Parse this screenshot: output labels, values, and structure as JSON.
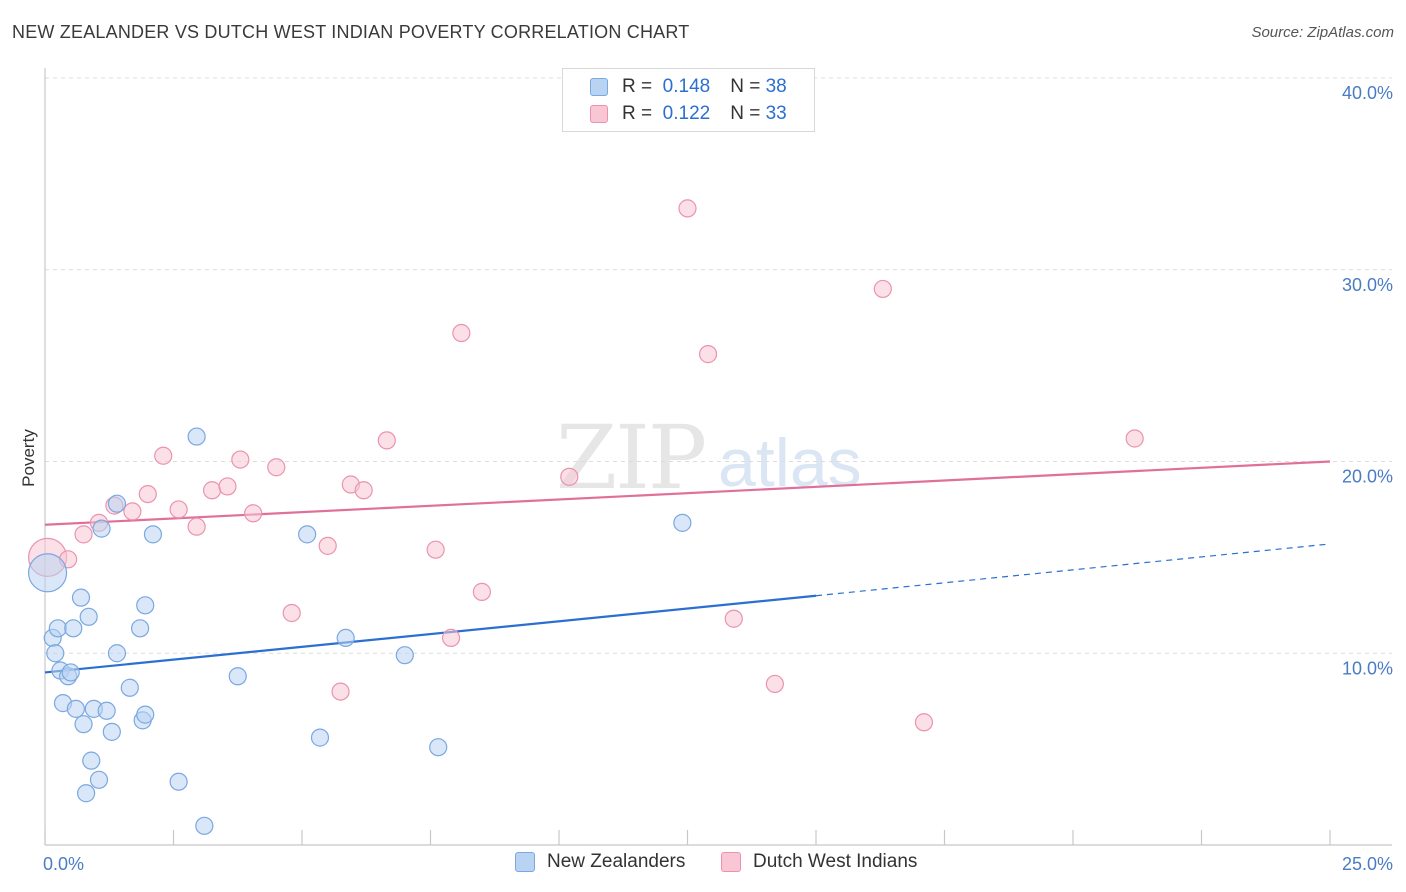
{
  "title": "NEW ZEALANDER VS DUTCH WEST INDIAN POVERTY CORRELATION CHART",
  "source": "Source: ZipAtlas.com",
  "watermark": {
    "zip": "ZIP",
    "atlas": "atlas"
  },
  "colors": {
    "blue_fill": "#b9d3f3",
    "blue_stroke": "#7aa8e0",
    "blue_line": "#2b6fd1",
    "pink_fill": "#f8c6d4",
    "pink_stroke": "#eb93ae",
    "pink_line": "#e0709a",
    "grid": "#dcdcdc",
    "axis_text": "#4a7cc4"
  },
  "legend": {
    "rows": [
      {
        "r_label": "R =",
        "r_value": "0.148",
        "n_label": "N =",
        "n_value": "38",
        "series": "New Zealanders"
      },
      {
        "r_label": "R =",
        "r_value": "0.122",
        "n_label": "N =",
        "n_value": "33",
        "series": "Dutch West Indians"
      }
    ]
  },
  "chart_data": {
    "type": "scatter",
    "title": "NEW ZEALANDER VS DUTCH WEST INDIAN POVERTY CORRELATION CHART",
    "xlabel": "",
    "ylabel": "Poverty",
    "xlim": [
      0,
      25
    ],
    "ylim": [
      0,
      40
    ],
    "x_tick_labels": [
      "0.0%",
      "25.0%"
    ],
    "y_ticks": [
      10,
      20,
      30,
      40
    ],
    "y_tick_labels": [
      "10.0%",
      "20.0%",
      "30.0%",
      "40.0%"
    ],
    "x_minor_ticks": [
      0,
      2.5,
      5,
      7.5,
      10,
      12.5,
      15,
      17.5,
      20,
      22.5,
      25
    ],
    "grid": true,
    "legend_position": "bottom",
    "series": [
      {
        "name": "New Zealanders",
        "color": "#7aa8e0",
        "r": 0.148,
        "n": 38,
        "trend": {
          "x0": 0,
          "y0": 9.0,
          "x1": 15,
          "y1": 13.0,
          "dashed_to_x": 25,
          "dashed_to_y": 15.7
        },
        "points": [
          {
            "x": 0.05,
            "y": 14.2,
            "big": true
          },
          {
            "x": 0.15,
            "y": 10.8
          },
          {
            "x": 0.2,
            "y": 10.0
          },
          {
            "x": 0.25,
            "y": 11.3
          },
          {
            "x": 0.3,
            "y": 9.1
          },
          {
            "x": 0.35,
            "y": 7.4
          },
          {
            "x": 0.45,
            "y": 8.8
          },
          {
            "x": 0.5,
            "y": 9.0
          },
          {
            "x": 0.55,
            "y": 11.3
          },
          {
            "x": 0.6,
            "y": 7.1
          },
          {
            "x": 0.7,
            "y": 12.9
          },
          {
            "x": 0.75,
            "y": 6.3
          },
          {
            "x": 0.8,
            "y": 2.7
          },
          {
            "x": 0.85,
            "y": 11.9
          },
          {
            "x": 0.9,
            "y": 4.4
          },
          {
            "x": 0.95,
            "y": 7.1
          },
          {
            "x": 1.05,
            "y": 3.4
          },
          {
            "x": 1.1,
            "y": 16.5
          },
          {
            "x": 1.2,
            "y": 7.0
          },
          {
            "x": 1.3,
            "y": 5.9
          },
          {
            "x": 1.4,
            "y": 10.0
          },
          {
            "x": 1.4,
            "y": 17.8
          },
          {
            "x": 1.65,
            "y": 8.2
          },
          {
            "x": 1.85,
            "y": 11.3
          },
          {
            "x": 1.9,
            "y": 6.5
          },
          {
            "x": 1.95,
            "y": 6.8
          },
          {
            "x": 1.95,
            "y": 12.5
          },
          {
            "x": 2.1,
            "y": 16.2
          },
          {
            "x": 2.6,
            "y": 3.3
          },
          {
            "x": 2.95,
            "y": 21.3
          },
          {
            "x": 3.1,
            "y": 1.0
          },
          {
            "x": 3.75,
            "y": 8.8
          },
          {
            "x": 5.1,
            "y": 16.2
          },
          {
            "x": 5.35,
            "y": 5.6
          },
          {
            "x": 5.85,
            "y": 10.8
          },
          {
            "x": 7.0,
            "y": 9.9
          },
          {
            "x": 7.65,
            "y": 5.1
          },
          {
            "x": 12.4,
            "y": 16.8
          }
        ]
      },
      {
        "name": "Dutch West Indians",
        "color": "#eb93ae",
        "r": 0.122,
        "n": 33,
        "trend": {
          "x0": 0,
          "y0": 16.7,
          "x1": 25,
          "y1": 20.0
        },
        "points": [
          {
            "x": 0.05,
            "y": 15.0,
            "big": true
          },
          {
            "x": 0.45,
            "y": 14.9
          },
          {
            "x": 0.75,
            "y": 16.2
          },
          {
            "x": 1.05,
            "y": 16.8
          },
          {
            "x": 1.35,
            "y": 17.7
          },
          {
            "x": 1.7,
            "y": 17.4
          },
          {
            "x": 2.0,
            "y": 18.3
          },
          {
            "x": 2.3,
            "y": 20.3
          },
          {
            "x": 2.6,
            "y": 17.5
          },
          {
            "x": 2.95,
            "y": 16.6
          },
          {
            "x": 3.25,
            "y": 18.5
          },
          {
            "x": 3.55,
            "y": 18.7
          },
          {
            "x": 3.8,
            "y": 20.1
          },
          {
            "x": 4.05,
            "y": 17.3
          },
          {
            "x": 4.5,
            "y": 19.7
          },
          {
            "x": 4.8,
            "y": 12.1
          },
          {
            "x": 5.5,
            "y": 15.6
          },
          {
            "x": 5.75,
            "y": 8.0
          },
          {
            "x": 5.95,
            "y": 18.8
          },
          {
            "x": 6.2,
            "y": 18.5
          },
          {
            "x": 6.65,
            "y": 21.1
          },
          {
            "x": 7.6,
            "y": 15.4
          },
          {
            "x": 7.9,
            "y": 10.8
          },
          {
            "x": 8.1,
            "y": 26.7
          },
          {
            "x": 8.5,
            "y": 13.2
          },
          {
            "x": 10.2,
            "y": 19.2
          },
          {
            "x": 12.5,
            "y": 33.2
          },
          {
            "x": 12.9,
            "y": 25.6
          },
          {
            "x": 13.4,
            "y": 11.8
          },
          {
            "x": 14.2,
            "y": 8.4
          },
          {
            "x": 16.3,
            "y": 29.0
          },
          {
            "x": 17.1,
            "y": 6.4
          },
          {
            "x": 21.2,
            "y": 21.2
          }
        ]
      }
    ]
  }
}
